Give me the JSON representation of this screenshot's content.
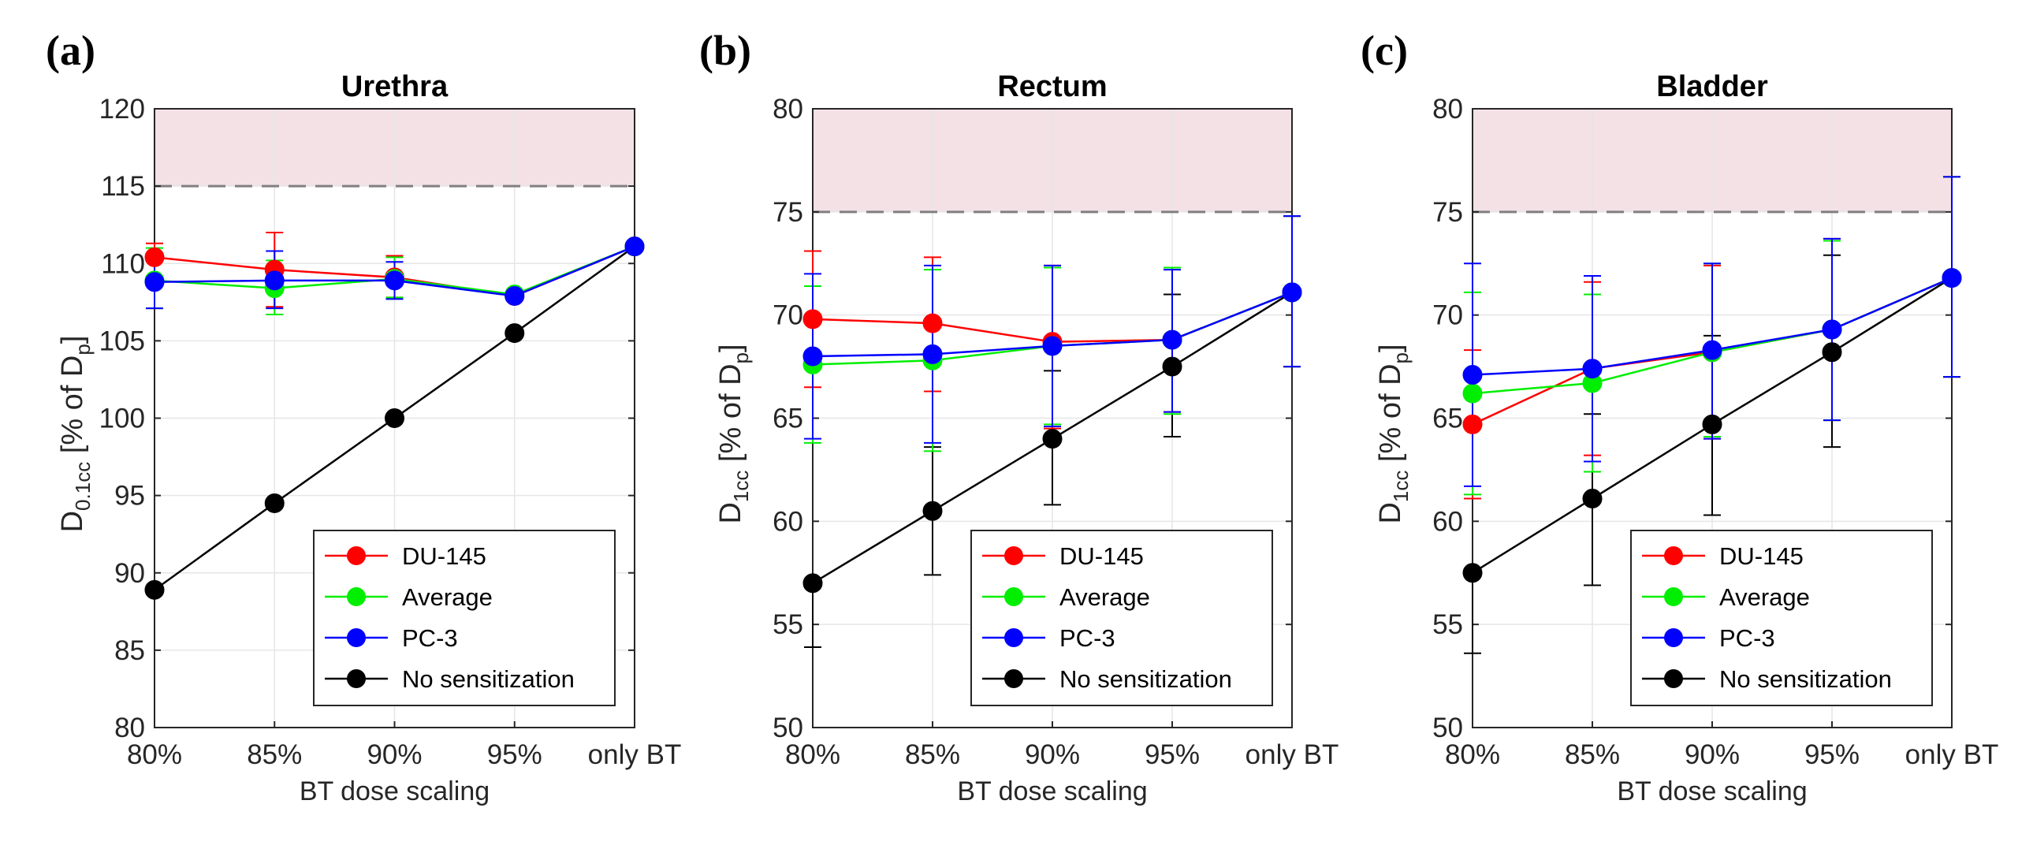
{
  "colors": {
    "DU-145": "#ff0000",
    "Average": "#00ee00",
    "PC-3": "#0000ff",
    "No sensitization": "#000000",
    "threshold_band": "#f3e1e6",
    "threshold_line": "#808080"
  },
  "chart_data": [
    {
      "type": "line",
      "panel": "(a)",
      "title": "Urethra",
      "xlabel": "BT dose scaling",
      "ylabel_main": "D",
      "ylabel_sub": "0.1cc",
      "ylabel_suffix": " [% of D",
      "ylabel_sub2": "p",
      "ylabel_end": "]",
      "categories": [
        "80%",
        "85%",
        "90%",
        "95%",
        "only BT"
      ],
      "ylim": [
        80,
        120
      ],
      "yticks": [
        80,
        85,
        90,
        95,
        100,
        105,
        110,
        115,
        120
      ],
      "grid": true,
      "threshold": 115,
      "shaded_range": [
        115,
        120
      ],
      "legend_position": "bottom-right",
      "series": [
        {
          "name": "DU-145",
          "values": [
            110.4,
            109.6,
            109.1,
            107.9,
            111.1
          ],
          "lower": [
            107.1,
            107.2,
            107.8,
            107.9,
            111.1
          ],
          "upper": [
            111.3,
            112.0,
            110.5,
            108.2,
            111.1
          ]
        },
        {
          "name": "Average",
          "values": [
            108.9,
            108.4,
            109.0,
            108.0,
            111.1
          ],
          "lower": [
            107.1,
            106.7,
            107.8,
            107.8,
            111.1
          ],
          "upper": [
            111.0,
            110.2,
            110.4,
            108.2,
            111.1
          ]
        },
        {
          "name": "PC-3",
          "values": [
            108.8,
            108.9,
            108.9,
            107.9,
            111.1
          ],
          "lower": [
            107.1,
            107.1,
            107.7,
            107.8,
            111.1
          ],
          "upper": [
            110.6,
            110.8,
            110.1,
            108.1,
            111.1
          ]
        },
        {
          "name": "No sensitization",
          "values": [
            88.9,
            94.5,
            100.0,
            105.5,
            111.1
          ],
          "lower": [
            88.9,
            94.5,
            100.0,
            105.5,
            111.1
          ],
          "upper": [
            88.9,
            94.5,
            100.0,
            105.5,
            111.1
          ]
        }
      ]
    },
    {
      "type": "line",
      "panel": "(b)",
      "title": "Rectum",
      "xlabel": "BT dose scaling",
      "ylabel_main": "D",
      "ylabel_sub": "1cc",
      "ylabel_suffix": " [% of D",
      "ylabel_sub2": "p",
      "ylabel_end": "]",
      "categories": [
        "80%",
        "85%",
        "90%",
        "95%",
        "only BT"
      ],
      "ylim": [
        50,
        80
      ],
      "yticks": [
        50,
        55,
        60,
        65,
        70,
        75,
        80
      ],
      "grid": true,
      "threshold": 75,
      "shaded_range": [
        75,
        80
      ],
      "legend_position": "bottom-right",
      "series": [
        {
          "name": "DU-145",
          "values": [
            69.8,
            69.6,
            68.7,
            68.8,
            71.1
          ],
          "lower": [
            66.5,
            66.3,
            64.5,
            65.3,
            67.5
          ],
          "upper": [
            73.1,
            72.8,
            72.4,
            72.3,
            74.8
          ]
        },
        {
          "name": "Average",
          "values": [
            67.6,
            67.8,
            68.5,
            68.8,
            71.1
          ],
          "lower": [
            63.8,
            63.4,
            64.7,
            65.2,
            67.5
          ],
          "upper": [
            71.4,
            72.2,
            72.3,
            72.3,
            74.8
          ]
        },
        {
          "name": "PC-3",
          "values": [
            68.0,
            68.1,
            68.5,
            68.8,
            71.1
          ],
          "lower": [
            64.0,
            63.8,
            64.6,
            65.3,
            67.5
          ],
          "upper": [
            72.0,
            72.4,
            72.4,
            72.2,
            74.8
          ]
        },
        {
          "name": "No sensitization",
          "values": [
            57.0,
            60.5,
            64.0,
            67.5,
            71.1
          ],
          "lower": [
            53.9,
            57.4,
            60.8,
            64.1,
            67.5
          ],
          "upper": [
            57.0,
            63.6,
            67.3,
            71.0,
            74.8
          ]
        }
      ]
    },
    {
      "type": "line",
      "panel": "(c)",
      "title": "Bladder",
      "xlabel": "BT dose scaling",
      "ylabel_main": "D",
      "ylabel_sub": "1cc",
      "ylabel_suffix": " [% of D",
      "ylabel_sub2": "p",
      "ylabel_end": "]",
      "categories": [
        "80%",
        "85%",
        "90%",
        "95%",
        "only BT"
      ],
      "ylim": [
        50,
        80
      ],
      "yticks": [
        50,
        55,
        60,
        65,
        70,
        75,
        80
      ],
      "grid": true,
      "threshold": 75,
      "shaded_range": [
        75,
        80
      ],
      "legend_position": "bottom-right",
      "series": [
        {
          "name": "DU-145",
          "values": [
            64.7,
            67.4,
            68.2,
            69.3,
            71.8
          ],
          "lower": [
            61.1,
            63.2,
            64.0,
            64.9,
            67.0
          ],
          "upper": [
            68.3,
            71.6,
            72.4,
            73.7,
            76.7
          ]
        },
        {
          "name": "Average",
          "values": [
            66.2,
            66.7,
            68.2,
            69.3,
            71.8
          ],
          "lower": [
            61.3,
            62.4,
            64.1,
            64.9,
            67.0
          ],
          "upper": [
            71.1,
            71.0,
            72.5,
            73.6,
            76.7
          ]
        },
        {
          "name": "PC-3",
          "values": [
            67.1,
            67.4,
            68.3,
            69.3,
            71.8
          ],
          "lower": [
            61.7,
            62.9,
            64.0,
            64.9,
            67.0
          ],
          "upper": [
            72.5,
            71.9,
            72.5,
            73.7,
            76.7
          ]
        },
        {
          "name": "No sensitization",
          "values": [
            57.5,
            61.1,
            64.7,
            68.2,
            71.8
          ],
          "lower": [
            53.6,
            56.9,
            60.3,
            63.6,
            67.0
          ],
          "upper": [
            57.5,
            65.2,
            69.0,
            72.9,
            76.7
          ]
        }
      ]
    }
  ]
}
